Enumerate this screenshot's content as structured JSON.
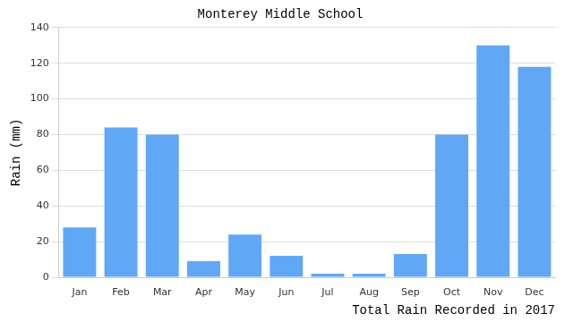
{
  "chart_data": {
    "type": "bar",
    "title": "Monterey Middle School",
    "x_label": "Total Rain Recorded in 2017",
    "y_label": "Rain (mm)",
    "categories": [
      "Jan",
      "Feb",
      "Mar",
      "Apr",
      "May",
      "Jun",
      "Jul",
      "Aug",
      "Sep",
      "Oct",
      "Nov",
      "Dec"
    ],
    "values": [
      28,
      84,
      80,
      9,
      24,
      12,
      2,
      2,
      13,
      80,
      130,
      118
    ],
    "color": "#60a8f5",
    "ylim": [
      0,
      140
    ],
    "yticks": [
      0,
      20,
      40,
      60,
      80,
      100,
      120,
      140
    ],
    "grid": true
  }
}
